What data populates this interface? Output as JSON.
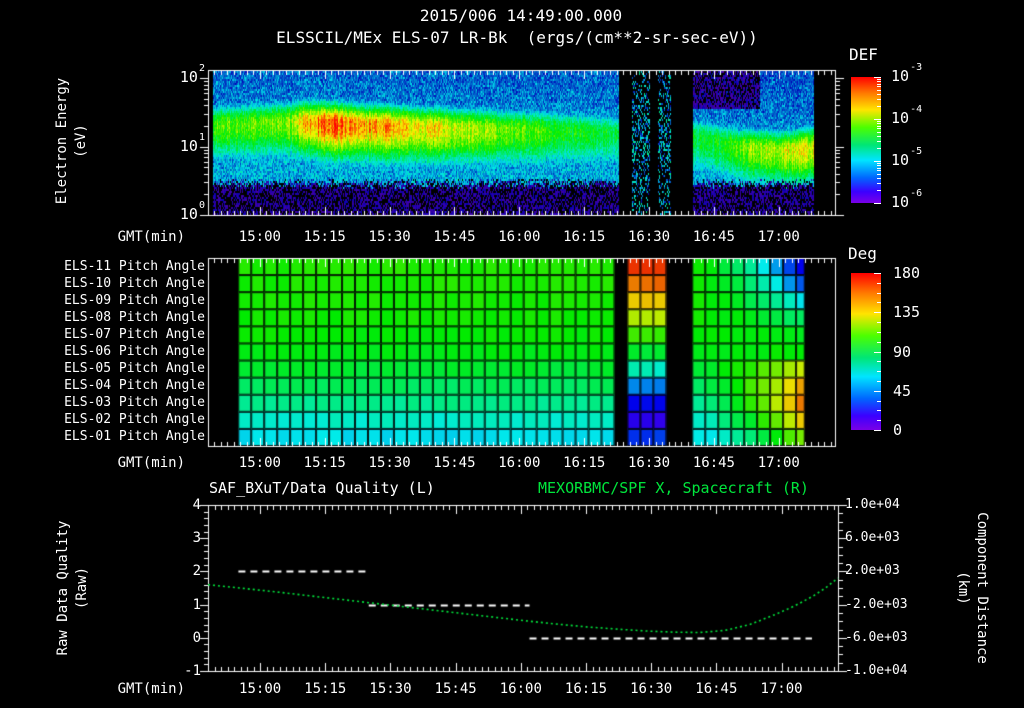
{
  "header": {
    "timestamp_title": "2015/006 14:49:00.000",
    "subtitle": "ELSSCIL/MEx ELS-07 LR-Bk  (ergs/(cm**2-sr-sec-eV))"
  },
  "colors": {
    "background": "#000000",
    "text": "#ffffff",
    "accent_green": "#00e63c",
    "colormap": "rainbow"
  },
  "time_axis": {
    "label": "GMT(min)",
    "start_gmt": "14:48",
    "end_gmt": "17:13",
    "major_tick_step_min": 15,
    "minor_tick_step_min": 1.5,
    "tick_labels": [
      "15:00",
      "15:15",
      "15:30",
      "15:45",
      "16:00",
      "16:15",
      "16:30",
      "16:45",
      "17:00"
    ]
  },
  "top_panel": {
    "y_axis_label": [
      "Electron Energy",
      "(eV)"
    ],
    "y_tick_exponents": [
      2,
      1,
      0
    ],
    "colorbar": {
      "title": "DEF",
      "tick_exponents": [
        -3,
        -4,
        -5,
        -6
      ]
    }
  },
  "middle_panel": {
    "row_labels": [
      "ELS-11 Pitch Angle",
      "ELS-10 Pitch Angle",
      "ELS-09 Pitch Angle",
      "ELS-08 Pitch Angle",
      "ELS-07 Pitch Angle",
      "ELS-06 Pitch Angle",
      "ELS-05 Pitch Angle",
      "ELS-04 Pitch Angle",
      "ELS-03 Pitch Angle",
      "ELS-02 Pitch Angle",
      "ELS-01 Pitch Angle"
    ],
    "colorbar": {
      "title": "Deg",
      "tick_labels": [
        "180",
        "135",
        "90",
        "45",
        "0"
      ]
    }
  },
  "bottom_panel": {
    "left_title": "SAF_BXuT/Data Quality (L)",
    "right_title": "MEXORBMC/SPF X, Spacecraft (R)",
    "left_axis_label": [
      "Raw Data Quality",
      "(Raw)"
    ],
    "right_axis_label": [
      "Component Distance",
      "(km)"
    ],
    "left_tick_labels": [
      "4",
      "3",
      "2",
      "1",
      "0",
      "-1"
    ],
    "right_tick_labels": [
      "1.0e+04",
      "6.0e+03",
      "2.0e+03",
      "-2.0e+03",
      "-6.0e+03",
      "-1.0e+04"
    ]
  },
  "chart_data": [
    {
      "type": "heatmap",
      "name": "electron-energy-spectrogram",
      "title": "ELSSCIL/MEx ELS-07 LR-Bk",
      "units": "ergs/(cm**2-sr-sec-eV)",
      "x_range_gmt": [
        "14:49",
        "17:08"
      ],
      "y_range_ev": [
        1,
        135
      ],
      "y_scale": "log",
      "color_range": [
        1e-06,
        0.001
      ],
      "color_scale": "log",
      "band_center_log10ev": [
        [
          0,
          1.32
        ],
        [
          0.15,
          1.38
        ],
        [
          0.25,
          1.33
        ],
        [
          0.4,
          1.28
        ],
        [
          0.55,
          1.25
        ],
        [
          0.7,
          1.2
        ],
        [
          0.8,
          1.15
        ],
        [
          0.88,
          1.0
        ],
        [
          0.95,
          0.95
        ],
        [
          1,
          1.0
        ]
      ],
      "band_peak_norm": [
        [
          0,
          0.62
        ],
        [
          0.08,
          0.63
        ],
        [
          0.13,
          0.68
        ],
        [
          0.16,
          0.85
        ],
        [
          0.2,
          0.95
        ],
        [
          0.22,
          0.88
        ],
        [
          0.25,
          0.82
        ],
        [
          0.28,
          0.85
        ],
        [
          0.32,
          0.8
        ],
        [
          0.36,
          0.78
        ],
        [
          0.4,
          0.72
        ],
        [
          0.45,
          0.68
        ],
        [
          0.5,
          0.63
        ],
        [
          0.55,
          0.6
        ],
        [
          0.6,
          0.55
        ],
        [
          0.64,
          0.52
        ],
        [
          0.77,
          0.45
        ],
        [
          0.8,
          0.5
        ],
        [
          0.85,
          0.55
        ],
        [
          0.9,
          0.68
        ],
        [
          0.94,
          0.72
        ],
        [
          1,
          0.78
        ]
      ],
      "data_gaps_gmt": [
        [
          "16:23",
          "16:26"
        ],
        [
          "16:30",
          "16:32"
        ],
        [
          "16:35",
          "16:40"
        ]
      ],
      "sparse_data_gmt": [
        [
          "16:26",
          "16:30"
        ],
        [
          "16:32",
          "16:35"
        ]
      ]
    },
    {
      "type": "heatmap",
      "name": "pitch-angle-grid",
      "rows": 11,
      "units": "deg",
      "color_range": [
        0,
        180
      ],
      "x_range_gmt": [
        "14:55",
        "17:06"
      ],
      "column_minutes": 3,
      "row_profiles_deg": {
        "normal": [
          108,
          107,
          106,
          105,
          103,
          100,
          95,
          88,
          80,
          70,
          62
        ],
        "special": [
          172,
          162,
          148,
          132,
          112,
          95,
          72,
          48,
          28,
          18,
          35
        ],
        "final": [
          18,
          38,
          62,
          85,
          98,
          103,
          138,
          158,
          165,
          150,
          128
        ]
      },
      "special_columns_gmt": [
        [
          "16:26",
          "16:30"
        ],
        [
          "16:32",
          "16:35"
        ]
      ],
      "data_gaps_gmt": [
        [
          "16:23",
          "16:26"
        ],
        [
          "16:30",
          "16:32"
        ],
        [
          "16:35",
          "16:40"
        ]
      ],
      "transition_gmt": [
        "16:40",
        "17:06"
      ]
    },
    {
      "type": "line",
      "name": "quality-and-orbit",
      "left_axis": {
        "label": "Raw Data Quality (Raw)",
        "range": [
          -1,
          4
        ]
      },
      "right_axis": {
        "label": "Component Distance (km)",
        "range": [
          -10000,
          10000
        ]
      },
      "series": [
        {
          "name": "SAF_BXuT/Data Quality (L)",
          "axis": "left",
          "color": "#ffffff",
          "style": "dashed",
          "steps": [
            {
              "start_gmt": "14:55",
              "end_gmt": "15:25",
              "value": 2
            },
            {
              "start_gmt": "15:25",
              "end_gmt": "16:02",
              "value": 1
            },
            {
              "start_gmt": "16:02",
              "end_gmt": "17:07",
              "value": 0
            }
          ]
        },
        {
          "name": "MEXORBMC/SPF X, Spacecraft (R)",
          "axis": "right",
          "color": "#00e63c",
          "style": "dotted",
          "points": [
            [
              0,
              400
            ],
            [
              0.05,
              0
            ],
            [
              0.1,
              -400
            ],
            [
              0.15,
              -840
            ],
            [
              0.2,
              -1280
            ],
            [
              0.25,
              -1720
            ],
            [
              0.3,
              -2160
            ],
            [
              0.35,
              -2600
            ],
            [
              0.4,
              -3040
            ],
            [
              0.45,
              -3480
            ],
            [
              0.5,
              -3920
            ],
            [
              0.55,
              -4320
            ],
            [
              0.6,
              -4680
            ],
            [
              0.65,
              -4960
            ],
            [
              0.7,
              -5200
            ],
            [
              0.74,
              -5320
            ],
            [
              0.78,
              -5360
            ],
            [
              0.82,
              -5120
            ],
            [
              0.86,
              -4400
            ],
            [
              0.9,
              -3200
            ],
            [
              0.93,
              -2200
            ],
            [
              0.96,
              -1000
            ],
            [
              0.98,
              0
            ],
            [
              1,
              1200
            ]
          ]
        }
      ]
    }
  ]
}
